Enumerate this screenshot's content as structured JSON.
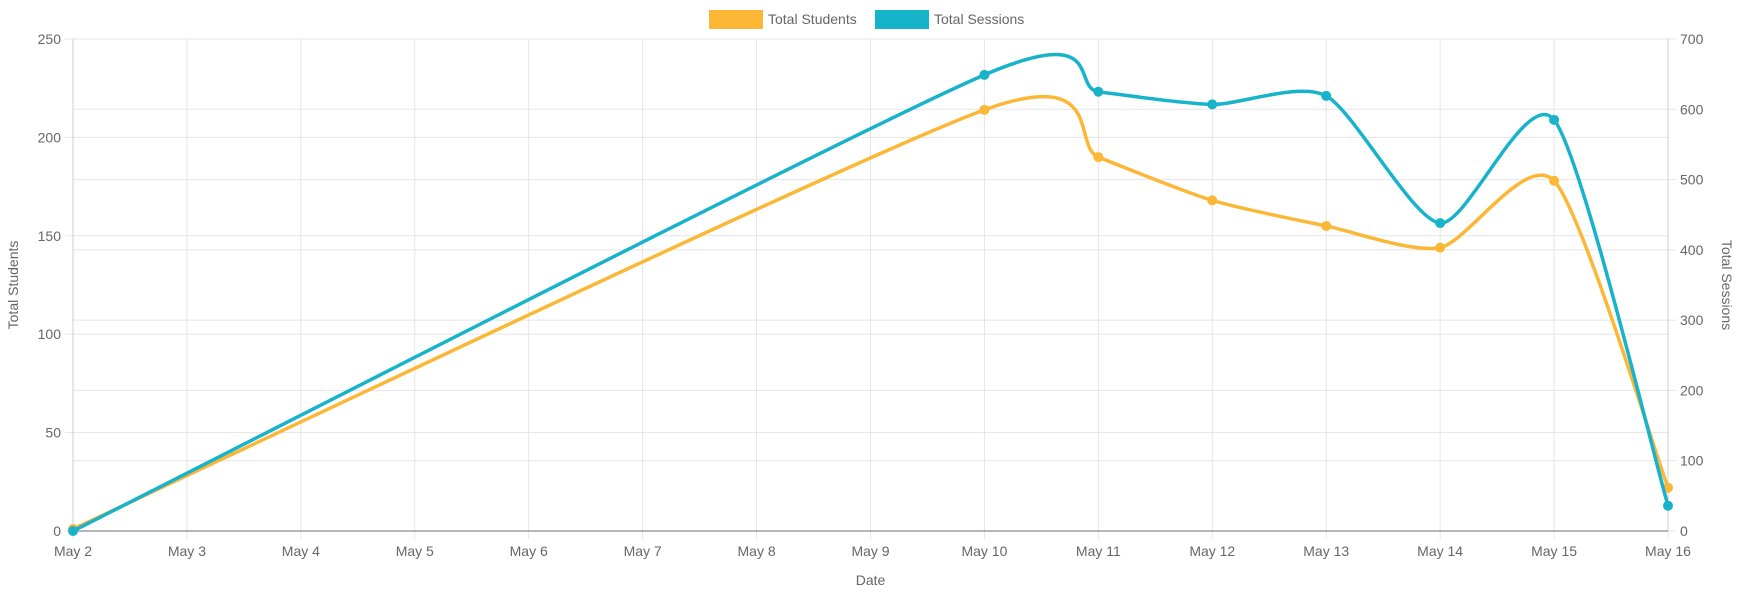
{
  "chart_data": {
    "type": "line",
    "title": "",
    "xlabel": "Date",
    "ylabel_left": "Total Students",
    "ylabel_right": "Total Sessions",
    "categories": [
      "May 2",
      "May 3",
      "May 4",
      "May 5",
      "May 6",
      "May 7",
      "May 8",
      "May 9",
      "May 10",
      "May 11",
      "May 12",
      "May 13",
      "May 14",
      "May 15",
      "May 16"
    ],
    "y_left_ticks": [
      "0",
      "50",
      "100",
      "150",
      "200",
      "250"
    ],
    "y_right_ticks": [
      "0",
      "100",
      "200",
      "300",
      "400",
      "500",
      "600",
      "700"
    ],
    "ylim_left": [
      0,
      250
    ],
    "ylim_right": [
      0,
      700
    ],
    "grid": true,
    "legend_position": "top-center",
    "series": [
      {
        "name": "Total Students",
        "axis": "left",
        "color": "#FBB735",
        "points": [
          {
            "x": "May 2",
            "y": 1
          },
          {
            "x": "May 10",
            "y": 214
          },
          {
            "x": "May 11",
            "y": 190
          },
          {
            "x": "May 12",
            "y": 168
          },
          {
            "x": "May 13",
            "y": 155
          },
          {
            "x": "May 14",
            "y": 144
          },
          {
            "x": "May 15",
            "y": 178
          },
          {
            "x": "May 16",
            "y": 22
          }
        ]
      },
      {
        "name": "Total Sessions",
        "axis": "right",
        "color": "#17B3CB",
        "points": [
          {
            "x": "May 2",
            "y": 0
          },
          {
            "x": "May 10",
            "y": 649
          },
          {
            "x": "May 11",
            "y": 625
          },
          {
            "x": "May 12",
            "y": 607
          },
          {
            "x": "May 13",
            "y": 619
          },
          {
            "x": "May 14",
            "y": 438
          },
          {
            "x": "May 15",
            "y": 585
          },
          {
            "x": "May 16",
            "y": 36
          }
        ]
      }
    ]
  }
}
